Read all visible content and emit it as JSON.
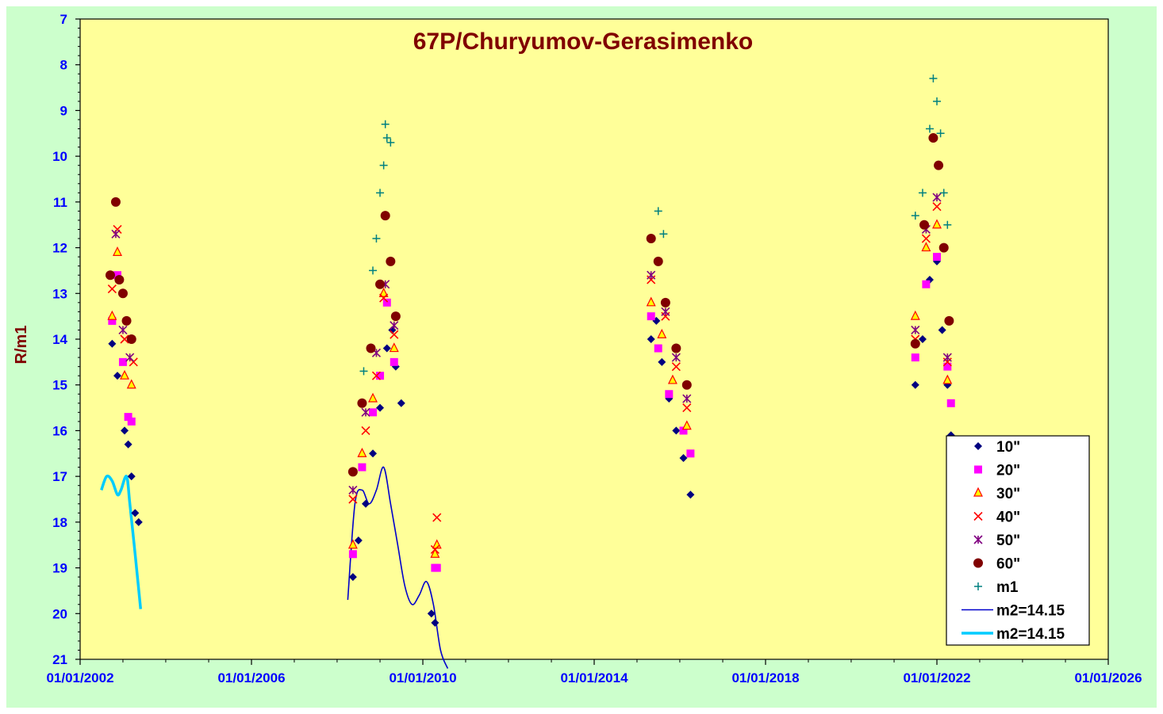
{
  "chart_data": {
    "type": "scatter",
    "title": "67P/Churyumov-Gerasimenko",
    "ylabel": "R/m1",
    "xlabel": "",
    "ylim": [
      7,
      21
    ],
    "y_inverted": true,
    "xlim": [
      "01/01/2002",
      "01/01/2026"
    ],
    "x_tick_labels": [
      "01/01/2002",
      "01/01/2006",
      "01/01/2010",
      "01/01/2014",
      "01/01/2018",
      "01/01/2022",
      "01/01/2026"
    ],
    "y_tick_labels": [
      "7",
      "8",
      "9",
      "10",
      "11",
      "12",
      "13",
      "14",
      "15",
      "16",
      "17",
      "18",
      "19",
      "20",
      "21"
    ],
    "grid": false,
    "legend_position": "bottom-right",
    "colors": {
      "outer_background": "#ccffcc",
      "plot_background": "#ffff99",
      "title": "#800000",
      "ylabel": "#800000",
      "tick_labels": "#0000ff"
    },
    "series": [
      {
        "name": "10\"",
        "marker": "diamond",
        "color": "#000080",
        "segments": [
          {
            "x": [
              "2002-10-01",
              "2002-11-15",
              "2003-01-15",
              "2003-02-15",
              "2003-03-15",
              "2003-04-15",
              "2003-05-15"
            ],
            "y": [
              14.1,
              14.8,
              16.0,
              16.3,
              17.0,
              17.8,
              18.0
            ]
          },
          {
            "x": [
              "2008-05-15",
              "2008-07-01",
              "2008-09-01",
              "2008-11-01",
              "2009-01-01",
              "2009-03-01",
              "2009-04-15",
              "2009-05-15",
              "2009-07-01"
            ],
            "y": [
              19.2,
              18.4,
              17.6,
              16.5,
              15.5,
              14.2,
              13.8,
              14.6,
              15.4
            ]
          },
          {
            "x": [
              "2010-03-15",
              "2010-04-15"
            ],
            "y": [
              20.0,
              20.2
            ]
          },
          {
            "x": [
              "2015-05-01",
              "2015-06-15",
              "2015-08-01",
              "2015-10-01",
              "2015-12-01",
              "2016-02-01",
              "2016-04-01"
            ],
            "y": [
              14.0,
              13.6,
              14.5,
              15.3,
              16.0,
              16.6,
              17.4
            ]
          },
          {
            "x": [
              "2021-07-01",
              "2021-09-01",
              "2021-11-01",
              "2022-01-01",
              "2022-02-15",
              "2022-04-01",
              "2022-05-01"
            ],
            "y": [
              15.0,
              14.0,
              12.7,
              12.3,
              13.8,
              15.0,
              16.1
            ]
          }
        ]
      },
      {
        "name": "20\"",
        "marker": "square",
        "color": "#ff00ff",
        "segments": [
          {
            "x": [
              "2002-10-01",
              "2002-11-15",
              "2003-01-01",
              "2003-02-15",
              "2003-03-15"
            ],
            "y": [
              13.6,
              12.6,
              14.5,
              15.7,
              15.8
            ]
          },
          {
            "x": [
              "2008-05-15",
              "2008-08-01",
              "2008-11-01",
              "2009-01-01",
              "2009-03-01",
              "2009-05-01"
            ],
            "y": [
              18.7,
              16.8,
              15.6,
              14.8,
              13.2,
              14.5
            ]
          },
          {
            "x": [
              "2010-04-15",
              "2010-05-01"
            ],
            "y": [
              19.0,
              19.0
            ]
          },
          {
            "x": [
              "2015-05-01",
              "2015-07-01",
              "2015-10-01",
              "2016-02-01",
              "2016-04-01"
            ],
            "y": [
              13.5,
              14.2,
              15.2,
              16.0,
              16.5
            ]
          },
          {
            "x": [
              "2021-07-01",
              "2021-10-01",
              "2022-01-01",
              "2022-04-01",
              "2022-05-01"
            ],
            "y": [
              14.4,
              12.8,
              12.2,
              14.6,
              15.4
            ]
          }
        ]
      },
      {
        "name": "30\"",
        "marker": "triangle",
        "color": "#ff0000",
        "segments": [
          {
            "x": [
              "2002-10-01",
              "2002-11-15",
              "2003-01-15",
              "2003-03-15"
            ],
            "y": [
              13.5,
              12.1,
              14.8,
              15.0
            ]
          },
          {
            "x": [
              "2008-05-15",
              "2008-08-01",
              "2008-11-01",
              "2009-02-01",
              "2009-05-01"
            ],
            "y": [
              18.5,
              16.5,
              15.3,
              13.0,
              14.2
            ]
          },
          {
            "x": [
              "2010-04-15",
              "2010-05-01"
            ],
            "y": [
              18.7,
              18.5
            ]
          },
          {
            "x": [
              "2015-05-01",
              "2015-08-01",
              "2015-11-01",
              "2016-03-01"
            ],
            "y": [
              13.2,
              13.9,
              14.9,
              15.9
            ]
          },
          {
            "x": [
              "2021-07-01",
              "2021-10-01",
              "2022-01-01",
              "2022-04-01"
            ],
            "y": [
              13.5,
              12.0,
              11.5,
              14.9
            ]
          }
        ]
      },
      {
        "name": "40\"",
        "marker": "x",
        "color": "#ff0000",
        "segments": [
          {
            "x": [
              "2002-10-01",
              "2002-11-15",
              "2003-01-15",
              "2003-04-01"
            ],
            "y": [
              12.9,
              11.6,
              14.0,
              14.5
            ]
          },
          {
            "x": [
              "2008-05-15",
              "2008-09-01",
              "2008-12-01",
              "2009-02-01",
              "2009-05-01"
            ],
            "y": [
              17.5,
              16.0,
              14.8,
              13.1,
              13.9
            ]
          },
          {
            "x": [
              "2010-04-15",
              "2010-05-01"
            ],
            "y": [
              18.6,
              17.9
            ]
          },
          {
            "x": [
              "2015-05-01",
              "2015-09-01",
              "2015-12-01",
              "2016-03-01"
            ],
            "y": [
              12.7,
              13.5,
              14.6,
              15.5
            ]
          },
          {
            "x": [
              "2021-07-01",
              "2021-10-01",
              "2022-01-01",
              "2022-04-01"
            ],
            "y": [
              14.0,
              11.8,
              11.1,
              14.5
            ]
          }
        ]
      },
      {
        "name": "50\"",
        "marker": "star",
        "color": "#800080",
        "segments": [
          {
            "x": [
              "2002-11-01",
              "2003-01-01",
              "2003-03-01"
            ],
            "y": [
              11.7,
              13.8,
              14.4
            ]
          },
          {
            "x": [
              "2008-05-15",
              "2008-09-01",
              "2008-12-01",
              "2009-02-15",
              "2009-05-01"
            ],
            "y": [
              17.3,
              15.6,
              14.3,
              12.8,
              13.7
            ]
          },
          {
            "x": [
              "2015-05-01",
              "2015-09-01",
              "2015-12-01",
              "2016-03-01"
            ],
            "y": [
              12.6,
              13.4,
              14.4,
              15.3
            ]
          },
          {
            "x": [
              "2021-07-01",
              "2021-10-01",
              "2022-01-01",
              "2022-04-01"
            ],
            "y": [
              13.8,
              11.6,
              10.9,
              14.4
            ]
          }
        ]
      },
      {
        "name": "60\"",
        "marker": "circle",
        "color": "#800000",
        "segments": [
          {
            "x": [
              "2002-09-15",
              "2002-11-01",
              "2002-12-01",
              "2003-01-01",
              "2003-02-01",
              "2003-03-15"
            ],
            "y": [
              12.6,
              11.0,
              12.7,
              13.0,
              13.6,
              14.0
            ]
          },
          {
            "x": [
              "2008-05-15",
              "2008-08-01",
              "2008-10-15",
              "2009-01-01",
              "2009-02-15",
              "2009-04-01",
              "2009-05-15"
            ],
            "y": [
              16.9,
              15.4,
              14.2,
              12.8,
              11.3,
              12.3,
              13.5
            ]
          },
          {
            "x": [
              "2015-05-01",
              "2015-07-01",
              "2015-09-01",
              "2015-12-01",
              "2016-03-01"
            ],
            "y": [
              11.8,
              12.3,
              13.2,
              14.2,
              15.0
            ]
          },
          {
            "x": [
              "2021-07-01",
              "2021-09-15",
              "2021-12-01",
              "2022-01-15",
              "2022-03-01",
              "2022-04-15"
            ],
            "y": [
              14.1,
              11.5,
              9.6,
              10.2,
              12.0,
              13.6
            ]
          }
        ]
      },
      {
        "name": "m1",
        "marker": "plus",
        "color": "#008080",
        "segments": [
          {
            "x": [
              "2008-08-15",
              "2008-11-01",
              "2008-12-01",
              "2009-01-01",
              "2009-02-01",
              "2009-02-15",
              "2009-03-01",
              "2009-04-01"
            ],
            "y": [
              14.7,
              12.5,
              11.8,
              10.8,
              10.2,
              9.3,
              9.6,
              9.7
            ]
          },
          {
            "x": [
              "2015-07-01",
              "2015-08-15"
            ],
            "y": [
              11.2,
              11.7
            ]
          },
          {
            "x": [
              "2021-07-01",
              "2021-09-01",
              "2021-11-01",
              "2021-12-01",
              "2022-01-01",
              "2022-02-01",
              "2022-03-01",
              "2022-04-01"
            ],
            "y": [
              11.3,
              10.8,
              9.4,
              8.3,
              8.8,
              9.5,
              10.8,
              11.5
            ]
          }
        ]
      }
    ],
    "lines": [
      {
        "name": "m2=14.15",
        "color": "#0000cc",
        "width": "thin",
        "x": [
          "2008-04-01",
          "2008-06-01",
          "2008-08-01",
          "2008-10-01",
          "2008-12-01",
          "2009-02-01",
          "2009-04-01",
          "2009-06-01",
          "2009-08-01",
          "2009-10-01",
          "2009-12-01",
          "2010-02-01",
          "2010-04-01",
          "2010-06-01",
          "2010-08-01"
        ],
        "y": [
          19.7,
          17.6,
          17.3,
          17.6,
          17.3,
          16.8,
          17.6,
          18.5,
          19.4,
          19.8,
          19.6,
          19.3,
          19.8,
          20.8,
          21.2
        ]
      },
      {
        "name": "m2=14.15",
        "color": "#00ccff",
        "width": "thick",
        "x": [
          "2002-07-01",
          "2002-08-15",
          "2002-10-01",
          "2002-11-15",
          "2002-12-15",
          "2003-02-01",
          "2003-03-01",
          "2003-04-15",
          "2003-06-01"
        ],
        "y": [
          17.3,
          17.0,
          17.1,
          17.4,
          17.3,
          17.0,
          17.6,
          18.7,
          19.9
        ]
      }
    ]
  }
}
